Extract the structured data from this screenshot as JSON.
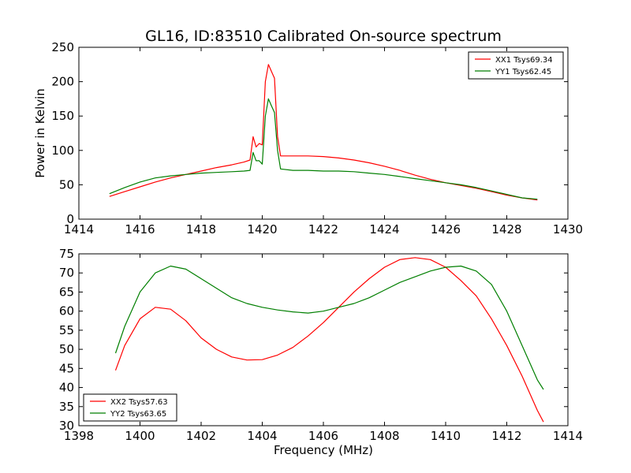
{
  "chart_data": [
    {
      "type": "line",
      "title": "GL16, ID:83510 Calibrated On-source spectrum",
      "xlabel": "",
      "ylabel": "Power in Kelvin",
      "xlim": [
        1414,
        1430
      ],
      "ylim": [
        0,
        250
      ],
      "xticks": [
        "1414",
        "1416",
        "1418",
        "1420",
        "1422",
        "1424",
        "1426",
        "1428",
        "1430"
      ],
      "yticks": [
        "0",
        "50",
        "100",
        "150",
        "200",
        "250"
      ],
      "grid": false,
      "legend": "top-right",
      "series": [
        {
          "name": "XX1 Tsys69.34",
          "color": "#ff0000",
          "x": [
            1415.0,
            1415.5,
            1416.0,
            1416.5,
            1417.0,
            1417.5,
            1418.0,
            1418.5,
            1419.0,
            1419.4,
            1419.6,
            1419.7,
            1419.8,
            1419.9,
            1420.0,
            1420.1,
            1420.2,
            1420.3,
            1420.4,
            1420.5,
            1420.6,
            1421.0,
            1421.5,
            1422.0,
            1422.5,
            1423.0,
            1423.5,
            1424.0,
            1424.5,
            1425.0,
            1425.5,
            1426.0,
            1426.5,
            1427.0,
            1427.5,
            1428.0,
            1428.5,
            1429.0
          ],
          "values": [
            33,
            40,
            47,
            54,
            60,
            65,
            70,
            75,
            79,
            83,
            86,
            120,
            105,
            110,
            108,
            200,
            225,
            215,
            205,
            120,
            92,
            92,
            92,
            91,
            89,
            86,
            82,
            77,
            71,
            64,
            58,
            53,
            49,
            45,
            40,
            35,
            31,
            28
          ]
        },
        {
          "name": "YY1 Tsys62.45",
          "color": "#007f00",
          "x": [
            1415.0,
            1415.5,
            1416.0,
            1416.5,
            1417.0,
            1417.5,
            1418.0,
            1418.5,
            1419.0,
            1419.4,
            1419.6,
            1419.7,
            1419.8,
            1419.9,
            1420.0,
            1420.1,
            1420.2,
            1420.3,
            1420.4,
            1420.5,
            1420.6,
            1421.0,
            1421.5,
            1422.0,
            1422.5,
            1423.0,
            1423.5,
            1424.0,
            1424.5,
            1425.0,
            1425.5,
            1426.0,
            1426.5,
            1427.0,
            1427.5,
            1428.0,
            1428.5,
            1429.0
          ],
          "values": [
            37,
            46,
            54,
            60,
            63,
            65,
            67,
            68,
            69,
            70,
            71,
            97,
            85,
            85,
            80,
            150,
            175,
            165,
            155,
            100,
            73,
            71,
            71,
            70,
            70,
            69,
            67,
            65,
            62,
            59,
            56,
            53,
            50,
            46,
            41,
            36,
            31,
            29
          ]
        }
      ]
    },
    {
      "type": "line",
      "title": "",
      "xlabel": "Frequency (MHz)",
      "ylabel": "",
      "xlim": [
        1398,
        1414
      ],
      "ylim": [
        30,
        75
      ],
      "xticks": [
        "1398",
        "1400",
        "1402",
        "1404",
        "1406",
        "1408",
        "1410",
        "1412",
        "1414"
      ],
      "yticks": [
        "30",
        "35",
        "40",
        "45",
        "50",
        "55",
        "60",
        "65",
        "70",
        "75"
      ],
      "grid": false,
      "legend": "bottom-left",
      "series": [
        {
          "name": "XX2 Tsys57.63",
          "color": "#ff0000",
          "x": [
            1399.2,
            1399.5,
            1400.0,
            1400.5,
            1401.0,
            1401.5,
            1402.0,
            1402.5,
            1403.0,
            1403.5,
            1404.0,
            1404.5,
            1405.0,
            1405.5,
            1406.0,
            1406.5,
            1407.0,
            1407.5,
            1408.0,
            1408.5,
            1409.0,
            1409.5,
            1410.0,
            1410.5,
            1411.0,
            1411.5,
            1412.0,
            1412.5,
            1413.0,
            1413.2
          ],
          "values": [
            44.5,
            51,
            58,
            61,
            60.5,
            57.5,
            53,
            50,
            48,
            47.2,
            47.3,
            48.5,
            50.5,
            53.5,
            57,
            61,
            65,
            68.5,
            71.5,
            73.5,
            74,
            73.5,
            71.5,
            68,
            64,
            58,
            51,
            43,
            34,
            31
          ]
        },
        {
          "name": "YY2 Tsys63.65",
          "color": "#007f00",
          "x": [
            1399.2,
            1399.5,
            1400.0,
            1400.5,
            1401.0,
            1401.5,
            1402.0,
            1402.5,
            1403.0,
            1403.5,
            1404.0,
            1404.5,
            1405.0,
            1405.5,
            1406.0,
            1406.5,
            1407.0,
            1407.5,
            1408.0,
            1408.5,
            1409.0,
            1409.5,
            1410.0,
            1410.5,
            1411.0,
            1411.5,
            1412.0,
            1412.5,
            1413.0,
            1413.2
          ],
          "values": [
            49,
            56,
            65,
            70,
            71.8,
            71,
            68.5,
            66,
            63.5,
            62,
            61,
            60.3,
            59.8,
            59.5,
            60,
            61,
            62,
            63.5,
            65.5,
            67.5,
            69,
            70.5,
            71.5,
            71.8,
            70.5,
            67,
            60,
            51,
            42,
            39.5
          ]
        }
      ]
    }
  ]
}
